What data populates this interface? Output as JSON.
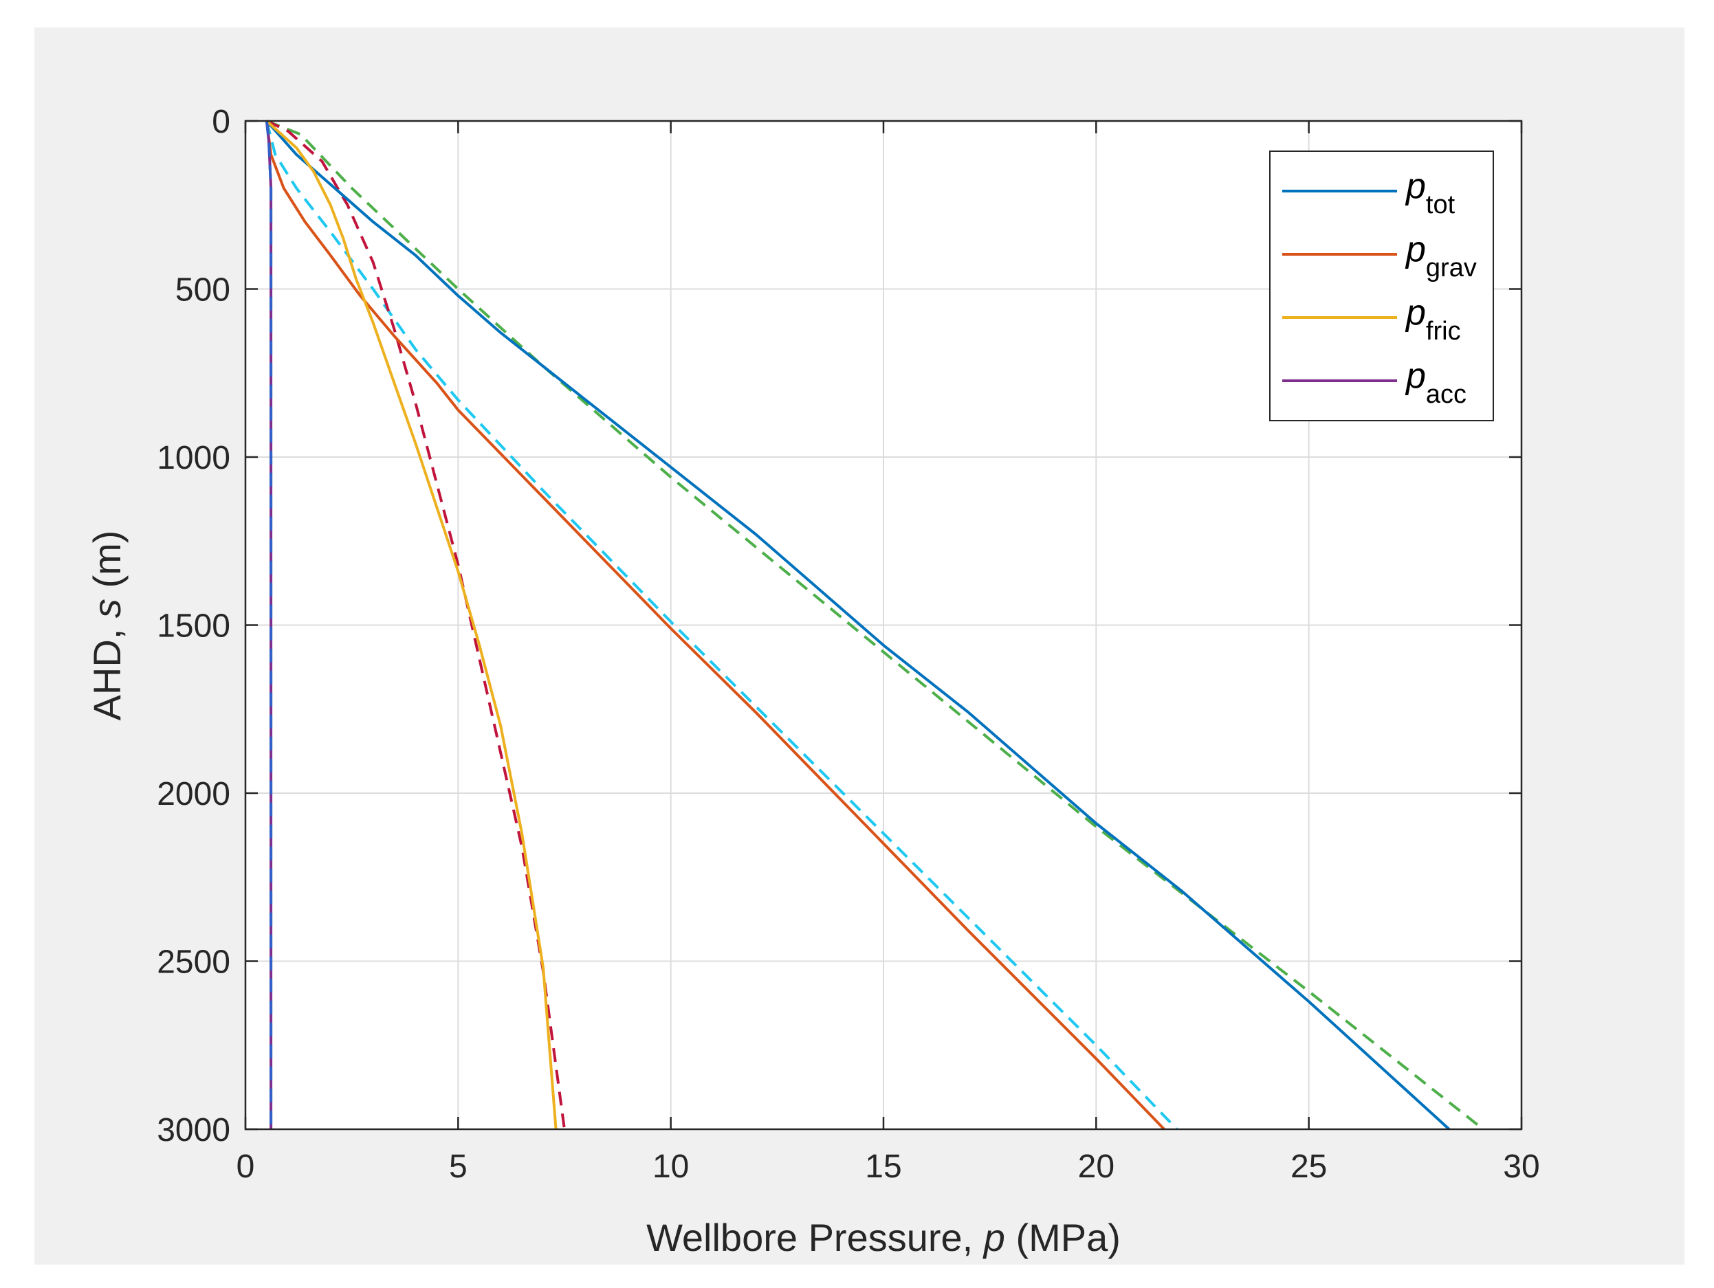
{
  "chart_data": {
    "type": "line",
    "xlabel": {
      "prefix": "Wellbore Pressure, ",
      "var": "p",
      "suffix": " (MPa)"
    },
    "ylabel": {
      "prefix": "AHD, ",
      "var": "s",
      "suffix": " (m)"
    },
    "xlim": [
      0,
      30
    ],
    "ylim": [
      0,
      3000
    ],
    "y_reversed": true,
    "x_ticks": [
      0,
      5,
      10,
      15,
      20,
      25,
      30
    ],
    "y_ticks": [
      0,
      500,
      1000,
      1500,
      2000,
      2500,
      3000
    ],
    "grid": true,
    "legend_position": "top-right",
    "series": [
      {
        "name": "p",
        "subscript": "tot",
        "color": "#0072BD",
        "style": "solid",
        "points": [
          [
            0.5,
            0
          ],
          [
            1.2,
            100
          ],
          [
            2.1,
            200
          ],
          [
            3.0,
            300
          ],
          [
            4.0,
            400
          ],
          [
            5.0,
            520
          ],
          [
            6.0,
            630
          ],
          [
            7.0,
            730
          ],
          [
            8.0,
            830
          ],
          [
            9.0,
            930
          ],
          [
            10.0,
            1030
          ],
          [
            12.0,
            1230
          ],
          [
            15.0,
            1560
          ],
          [
            17.0,
            1760
          ],
          [
            20.0,
            2090
          ],
          [
            22.0,
            2290
          ],
          [
            25.0,
            2620
          ],
          [
            28.3,
            3000
          ]
        ]
      },
      {
        "name": "p",
        "subscript": "grav",
        "color": "#D95319",
        "style": "solid",
        "points": [
          [
            0.5,
            0
          ],
          [
            0.6,
            100
          ],
          [
            0.9,
            200
          ],
          [
            1.4,
            300
          ],
          [
            2.0,
            400
          ],
          [
            2.7,
            520
          ],
          [
            3.5,
            640
          ],
          [
            4.5,
            780
          ],
          [
            5.0,
            860
          ],
          [
            7.0,
            1120
          ],
          [
            10.0,
            1510
          ],
          [
            12.0,
            1760
          ],
          [
            15.0,
            2150
          ],
          [
            17.0,
            2410
          ],
          [
            20.0,
            2790
          ],
          [
            21.6,
            3000
          ]
        ]
      },
      {
        "name": "p",
        "subscript": "fric",
        "color": "#EDB120",
        "style": "solid",
        "points": [
          [
            0.5,
            0
          ],
          [
            1.2,
            80
          ],
          [
            1.6,
            150
          ],
          [
            2.0,
            250
          ],
          [
            2.3,
            350
          ],
          [
            2.6,
            470
          ],
          [
            3.0,
            600
          ],
          [
            3.5,
            780
          ],
          [
            4.0,
            960
          ],
          [
            4.5,
            1150
          ],
          [
            5.0,
            1340
          ],
          [
            5.5,
            1560
          ],
          [
            6.0,
            1800
          ],
          [
            6.5,
            2120
          ],
          [
            7.0,
            2520
          ],
          [
            7.3,
            3000
          ]
        ]
      },
      {
        "name": "p",
        "subscript": "acc",
        "color": "#7E2F8E",
        "style": "solid",
        "points": [
          [
            0.5,
            0
          ],
          [
            0.55,
            60
          ],
          [
            0.6,
            200
          ],
          [
            0.6,
            3000
          ]
        ]
      },
      {
        "name": "",
        "color": "#4DAF4A",
        "style": "dashed",
        "points": [
          [
            0.5,
            0
          ],
          [
            1.3,
            40
          ],
          [
            2.5,
            200
          ],
          [
            5.0,
            500
          ],
          [
            7.0,
            730
          ],
          [
            10.0,
            1060
          ],
          [
            15.0,
            1580
          ],
          [
            20.0,
            2100
          ],
          [
            25.0,
            2590
          ],
          [
            29.1,
            3000
          ]
        ]
      },
      {
        "name": "",
        "color": "#1EC8F0",
        "style": "dashed",
        "points": [
          [
            0.5,
            0
          ],
          [
            0.7,
            100
          ],
          [
            1.2,
            200
          ],
          [
            2.0,
            330
          ],
          [
            3.0,
            500
          ],
          [
            4.0,
            680
          ],
          [
            5.0,
            830
          ],
          [
            7.0,
            1100
          ],
          [
            10.0,
            1490
          ],
          [
            15.0,
            2120
          ],
          [
            20.0,
            2750
          ],
          [
            21.9,
            3000
          ]
        ]
      },
      {
        "name": "",
        "color": "#C0143C",
        "style": "dashed",
        "points": [
          [
            0.5,
            0
          ],
          [
            1.0,
            30
          ],
          [
            1.8,
            120
          ],
          [
            2.4,
            250
          ],
          [
            3.0,
            420
          ],
          [
            3.5,
            620
          ],
          [
            4.0,
            840
          ],
          [
            5.0,
            1320
          ],
          [
            6.0,
            1880
          ],
          [
            6.5,
            2160
          ],
          [
            7.0,
            2530
          ],
          [
            7.5,
            3000
          ]
        ]
      },
      {
        "name": "",
        "color": "#3060C8",
        "style": "dashed",
        "points": [
          [
            0.5,
            0
          ],
          [
            0.55,
            60
          ],
          [
            0.6,
            200
          ],
          [
            0.6,
            3000
          ]
        ]
      }
    ]
  }
}
